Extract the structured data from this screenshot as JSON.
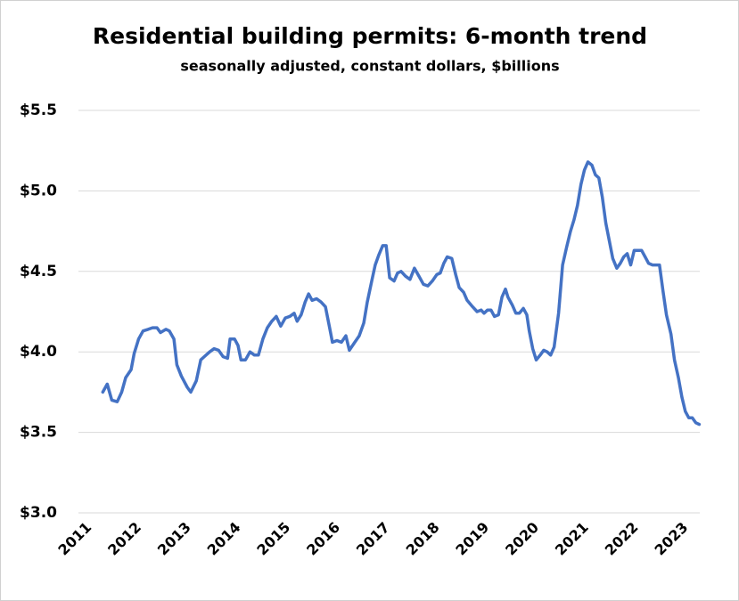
{
  "chart_data": {
    "type": "line",
    "title": "Residential building permits: 6-month trend",
    "subtitle": "seasonally adjusted, constant dollars, $billions",
    "color": "#4472c4",
    "grid": true,
    "x": [
      2011.27,
      2011.36,
      2011.45,
      2011.56,
      2011.65,
      2011.73,
      2011.84,
      2011.9,
      2011.99,
      2012.08,
      2012.18,
      2012.27,
      2012.36,
      2012.43,
      2012.54,
      2012.61,
      2012.7,
      2012.76,
      2012.85,
      2012.97,
      2013.04,
      2013.15,
      2013.24,
      2013.31,
      2013.42,
      2013.51,
      2013.6,
      2013.69,
      2013.78,
      2013.83,
      2013.92,
      2013.99,
      2014.05,
      2014.14,
      2014.23,
      2014.32,
      2014.4,
      2014.49,
      2014.58,
      2014.67,
      2014.76,
      2014.85,
      2014.94,
      2015.03,
      2015.12,
      2015.18,
      2015.26,
      2015.34,
      2015.41,
      2015.48,
      2015.57,
      2015.66,
      2015.75,
      2015.84,
      2015.89,
      2015.98,
      2016.07,
      2016.16,
      2016.23,
      2016.34,
      2016.43,
      2016.52,
      2016.59,
      2016.68,
      2016.75,
      2016.82,
      2016.9,
      2016.97,
      2017.04,
      2017.13,
      2017.2,
      2017.27,
      2017.36,
      2017.45,
      2017.54,
      2017.63,
      2017.72,
      2017.81,
      2017.9,
      2017.99,
      2018.06,
      2018.13,
      2018.2,
      2018.29,
      2018.37,
      2018.44,
      2018.53,
      2018.6,
      2018.71,
      2018.8,
      2018.88,
      2018.94,
      2019.01,
      2019.08,
      2019.15,
      2019.23,
      2019.3,
      2019.37,
      2019.42,
      2019.51,
      2019.58,
      2019.65,
      2019.73,
      2019.8,
      2019.85,
      2019.92,
      2019.99,
      2020.07,
      2020.14,
      2020.21,
      2020.28,
      2020.35,
      2020.44,
      2020.52,
      2020.6,
      2020.68,
      2020.75,
      2020.82,
      2020.89,
      2020.96,
      2021.03,
      2021.11,
      2021.18,
      2021.25,
      2021.32,
      2021.39,
      2021.46,
      2021.53,
      2021.61,
      2021.68,
      2021.75,
      2021.82,
      2021.89,
      2021.96,
      2022.03,
      2022.11,
      2022.18,
      2022.25,
      2022.33,
      2022.4,
      2022.47,
      2022.54,
      2022.61,
      2022.7,
      2022.77,
      2022.85,
      2022.92,
      2022.99,
      2023.06,
      2023.13,
      2023.2,
      2023.27
    ],
    "values": [
      3.75,
      3.8,
      3.7,
      3.69,
      3.75,
      3.84,
      3.89,
      3.99,
      4.08,
      4.13,
      4.14,
      4.15,
      4.15,
      4.12,
      4.14,
      4.13,
      4.08,
      3.92,
      3.85,
      3.78,
      3.75,
      3.82,
      3.95,
      3.97,
      4.0,
      4.02,
      4.01,
      3.97,
      3.96,
      4.08,
      4.08,
      4.04,
      3.95,
      3.95,
      4.0,
      3.98,
      3.98,
      4.08,
      4.15,
      4.19,
      4.22,
      4.16,
      4.21,
      4.22,
      4.24,
      4.19,
      4.23,
      4.31,
      4.36,
      4.32,
      4.33,
      4.31,
      4.28,
      4.14,
      4.06,
      4.07,
      4.06,
      4.1,
      4.01,
      4.06,
      4.1,
      4.18,
      4.31,
      4.44,
      4.54,
      4.6,
      4.66,
      4.66,
      4.46,
      4.44,
      4.49,
      4.5,
      4.47,
      4.45,
      4.52,
      4.47,
      4.42,
      4.41,
      4.44,
      4.48,
      4.49,
      4.55,
      4.59,
      4.58,
      4.48,
      4.4,
      4.37,
      4.32,
      4.28,
      4.25,
      4.26,
      4.24,
      4.26,
      4.26,
      4.22,
      4.23,
      4.34,
      4.39,
      4.34,
      4.29,
      4.24,
      4.24,
      4.27,
      4.23,
      4.13,
      4.02,
      3.95,
      3.98,
      4.01,
      4.0,
      3.98,
      4.03,
      4.24,
      4.54,
      4.65,
      4.75,
      4.82,
      4.91,
      5.04,
      5.13,
      5.18,
      5.16,
      5.1,
      5.08,
      4.96,
      4.8,
      4.69,
      4.58,
      4.52,
      4.55,
      4.59,
      4.61,
      4.54,
      4.63,
      4.63,
      4.63,
      4.59,
      4.55,
      4.54,
      4.54,
      4.54,
      4.38,
      4.23,
      4.11,
      3.95,
      3.84,
      3.72,
      3.63,
      3.59,
      3.59,
      3.56,
      3.55
    ],
    "xlim": [
      2010.78,
      2023.28
    ],
    "xticks": [
      2011,
      2012,
      2013,
      2014,
      2015,
      2016,
      2017,
      2018,
      2019,
      2020,
      2021,
      2022,
      2023
    ],
    "ylim": [
      3.0,
      5.5
    ],
    "yticks": [
      {
        "value": 3.0,
        "label": "$3.0"
      },
      {
        "value": 3.5,
        "label": "$3.5"
      },
      {
        "value": 4.0,
        "label": "$4.0"
      },
      {
        "value": 4.5,
        "label": "$4.5"
      },
      {
        "value": 5.0,
        "label": "$5.0"
      },
      {
        "value": 5.5,
        "label": "$5.5"
      }
    ]
  }
}
